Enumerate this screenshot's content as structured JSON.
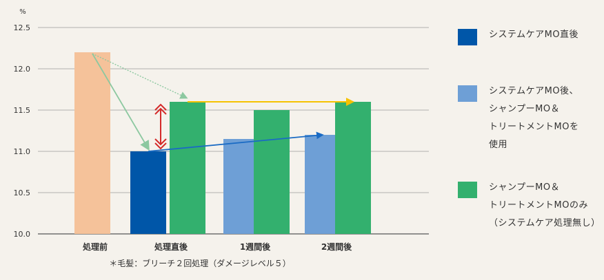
{
  "chart_data": {
    "type": "bar",
    "unit_label": "%",
    "categories": [
      "処理前",
      "処理直後",
      "1週間後",
      "2週間後"
    ],
    "ylim": [
      10.0,
      12.5
    ],
    "yticks": [
      "10.0",
      "10.5",
      "11.0",
      "11.5",
      "12.0",
      "12.5"
    ],
    "grid": true,
    "series": [
      {
        "name": "",
        "color": "#f5c29a",
        "values": [
          12.2,
          null,
          null,
          null
        ]
      },
      {
        "name": "システムケアMO直後",
        "color": "#0056a8",
        "values": [
          null,
          11.0,
          null,
          null
        ]
      },
      {
        "name": "システムケアMO後、\nシャンプーMO＆\nトリートメントMOを\n使用",
        "color": "#6e9fd6",
        "values": [
          null,
          null,
          11.15,
          11.2
        ]
      },
      {
        "name": "シャンプーMO＆\nトリートメントMOのみ\n（システムケア処理無し）",
        "color": "#33b06e",
        "values": [
          null,
          11.6,
          11.5,
          11.6
        ]
      }
    ],
    "footnote": "＊毛髪：ブリーチ２回処理（ダメージレベル５）",
    "legend_position": "right"
  }
}
